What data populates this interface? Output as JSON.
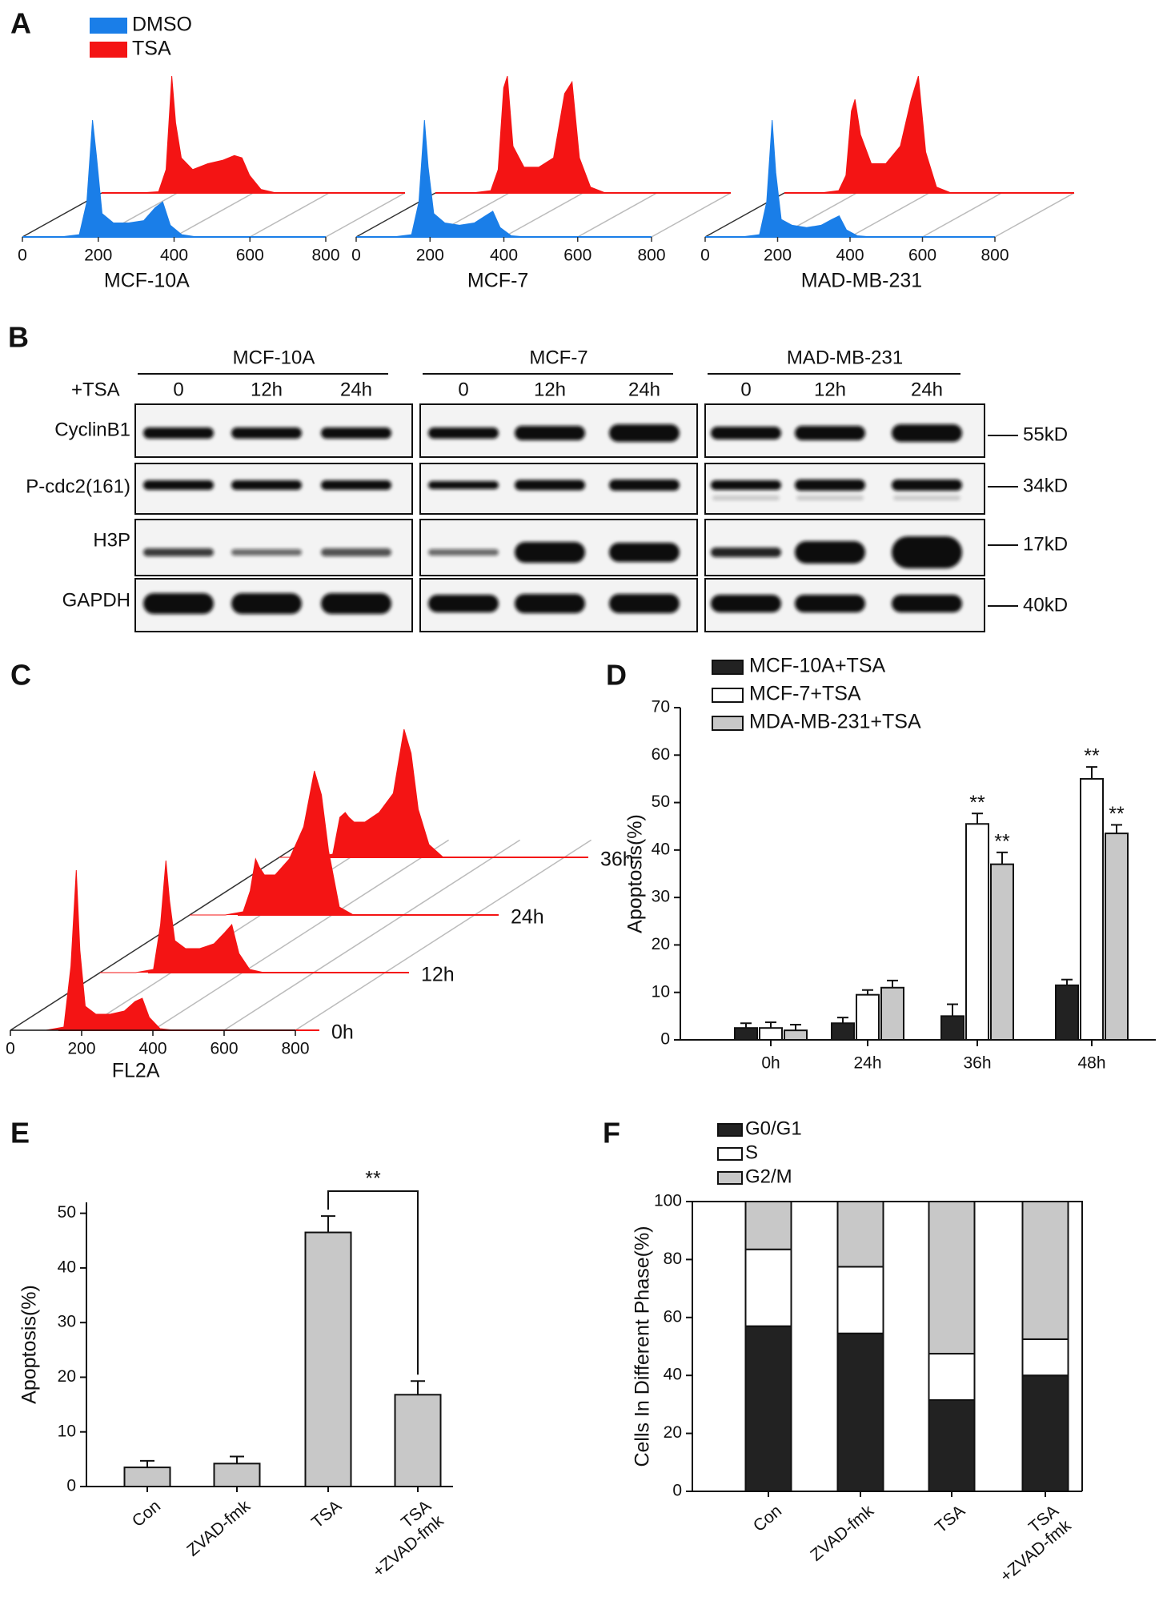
{
  "panel_labels": [
    "A",
    "B",
    "C",
    "D",
    "E",
    "F"
  ],
  "western_blot": {
    "treatment_label": "+TSA",
    "groups": [
      {
        "name": "MCF-10A",
        "lanes": [
          "0",
          "12h",
          "24h"
        ]
      },
      {
        "name": "MCF-7",
        "lanes": [
          "0",
          "12h",
          "24h"
        ]
      },
      {
        "name": "MAD-MB-231",
        "lanes": [
          "0",
          "12h",
          "24h"
        ]
      }
    ],
    "rows": [
      {
        "protein": "CyclinB1",
        "size": "55kD"
      },
      {
        "protein": "P-cdc2(161)",
        "size": "34kD"
      },
      {
        "protein": "H3P",
        "size": "17kD"
      },
      {
        "protein": "GAPDH",
        "size": "40kD"
      }
    ]
  },
  "chart_data": [
    {
      "type": "offset-histogram",
      "series_names": [
        "DMSO",
        "TSA"
      ],
      "colors": [
        "#1a7ee8",
        "#f41414"
      ],
      "xlim": [
        0,
        800
      ],
      "xticks": [
        0,
        200,
        400,
        600,
        800
      ],
      "x": [
        0,
        100,
        150,
        170,
        185,
        195,
        210,
        240,
        280,
        320,
        350,
        370,
        390,
        420,
        460,
        800
      ],
      "subplots": [
        {
          "xlabel": "MCF-10A",
          "series": [
            {
              "values": [
                0,
                0,
                2,
                30,
                100,
                70,
                20,
                12,
                12,
                14,
                25,
                30,
                10,
                2,
                0,
                0
              ]
            },
            {
              "values": [
                0,
                0,
                1,
                20,
                100,
                60,
                30,
                20,
                25,
                28,
                32,
                30,
                15,
                3,
                0,
                0
              ]
            }
          ]
        },
        {
          "xlabel": "MCF-7",
          "series": [
            {
              "values": [
                0,
                0,
                2,
                30,
                100,
                60,
                20,
                12,
                10,
                12,
                18,
                22,
                8,
                1,
                0,
                0
              ]
            },
            {
              "values": [
                0,
                0,
                2,
                20,
                90,
                100,
                40,
                22,
                22,
                30,
                85,
                95,
                30,
                5,
                0,
                0
              ]
            }
          ]
        },
        {
          "xlabel": "MAD-MB-231",
          "series": [
            {
              "values": [
                0,
                0,
                2,
                30,
                100,
                55,
                15,
                10,
                8,
                10,
                15,
                18,
                6,
                1,
                0,
                0
              ]
            },
            {
              "values": [
                0,
                0,
                2,
                15,
                70,
                80,
                50,
                25,
                25,
                40,
                80,
                100,
                35,
                5,
                0,
                0
              ]
            }
          ]
        }
      ]
    },
    {
      "type": "waterfall-histogram",
      "xlabel": "FL2A",
      "color": "#f41414",
      "xlim": [
        0,
        800
      ],
      "xticks": [
        0,
        200,
        400,
        600,
        800
      ],
      "x": [
        0,
        100,
        150,
        170,
        185,
        195,
        210,
        240,
        280,
        320,
        350,
        370,
        390,
        420,
        460,
        800
      ],
      "series": [
        {
          "name": "0h",
          "values": [
            0,
            0,
            2,
            40,
            100,
            50,
            15,
            10,
            10,
            12,
            18,
            20,
            8,
            1,
            0,
            0
          ]
        },
        {
          "name": "12h",
          "values": [
            0,
            0,
            2,
            30,
            70,
            45,
            20,
            15,
            15,
            18,
            25,
            30,
            12,
            2,
            0,
            0
          ]
        },
        {
          "name": "24h",
          "values": [
            0,
            0,
            2,
            15,
            35,
            30,
            25,
            25,
            35,
            55,
            90,
            75,
            40,
            5,
            0,
            0
          ]
        },
        {
          "name": "36h",
          "values": [
            0,
            0,
            2,
            25,
            28,
            25,
            22,
            22,
            28,
            40,
            80,
            65,
            30,
            8,
            0,
            0
          ]
        }
      ]
    },
    {
      "type": "grouped-bar",
      "ylabel": "Apoptosis(%)",
      "categories": [
        "0h",
        "24h",
        "36h",
        "48h"
      ],
      "ylim": [
        0,
        70
      ],
      "yticks": [
        0,
        10,
        20,
        30,
        40,
        50,
        60,
        70
      ],
      "series": [
        {
          "name": "MCF-10A+TSA",
          "color": "#222222",
          "values": [
            2.5,
            3.5,
            5,
            11.5
          ],
          "errors": [
            1,
            1.2,
            2.5,
            1.2
          ],
          "significance": [
            null,
            null,
            null,
            null
          ]
        },
        {
          "name": "MCF-7+TSA",
          "color": "#ffffff",
          "values": [
            2.5,
            9.5,
            45.5,
            55
          ],
          "errors": [
            1.2,
            1,
            2.2,
            2.5
          ],
          "significance": [
            null,
            null,
            "**",
            "**"
          ]
        },
        {
          "name": "MDA-MB-231+TSA",
          "color": "#c8c8c8",
          "values": [
            2,
            11,
            37,
            43.5
          ],
          "errors": [
            1.2,
            1.5,
            2.5,
            1.8
          ],
          "significance": [
            null,
            null,
            "**",
            "**"
          ]
        }
      ]
    },
    {
      "type": "bar",
      "ylabel": "Apoptosis(%)",
      "categories": [
        [
          "Con"
        ],
        [
          "ZVAD-fmk"
        ],
        [
          "TSA"
        ],
        [
          "TSA",
          "+ZVAD-fmk"
        ]
      ],
      "values": [
        3.5,
        4.2,
        46.5,
        16.8
      ],
      "errors": [
        1.2,
        1.3,
        3,
        2.5
      ],
      "color": "#c8c8c8",
      "comparison_label": "**",
      "ylim": [
        0,
        52
      ],
      "yticks": [
        0,
        10,
        20,
        30,
        40,
        50
      ]
    },
    {
      "type": "stacked-bar",
      "ylabel": "Cells In Different Phase(%)",
      "categories": [
        [
          "Con"
        ],
        [
          "ZVAD-fmk"
        ],
        [
          "TSA"
        ],
        [
          "TSA",
          "+ZVAD-fmk"
        ]
      ],
      "ylim": [
        0,
        100
      ],
      "yticks": [
        0,
        20,
        40,
        60,
        80,
        100
      ],
      "series": [
        {
          "name": "G0/G1",
          "color": "#222222",
          "values": [
            57,
            54.5,
            31.5,
            40
          ]
        },
        {
          "name": "S",
          "color": "#ffffff",
          "values": [
            26.5,
            23,
            16,
            12.5
          ]
        },
        {
          "name": "G2/M",
          "color": "#c8c8c8",
          "values": [
            16.5,
            22.5,
            52.5,
            47.5
          ]
        }
      ]
    }
  ]
}
